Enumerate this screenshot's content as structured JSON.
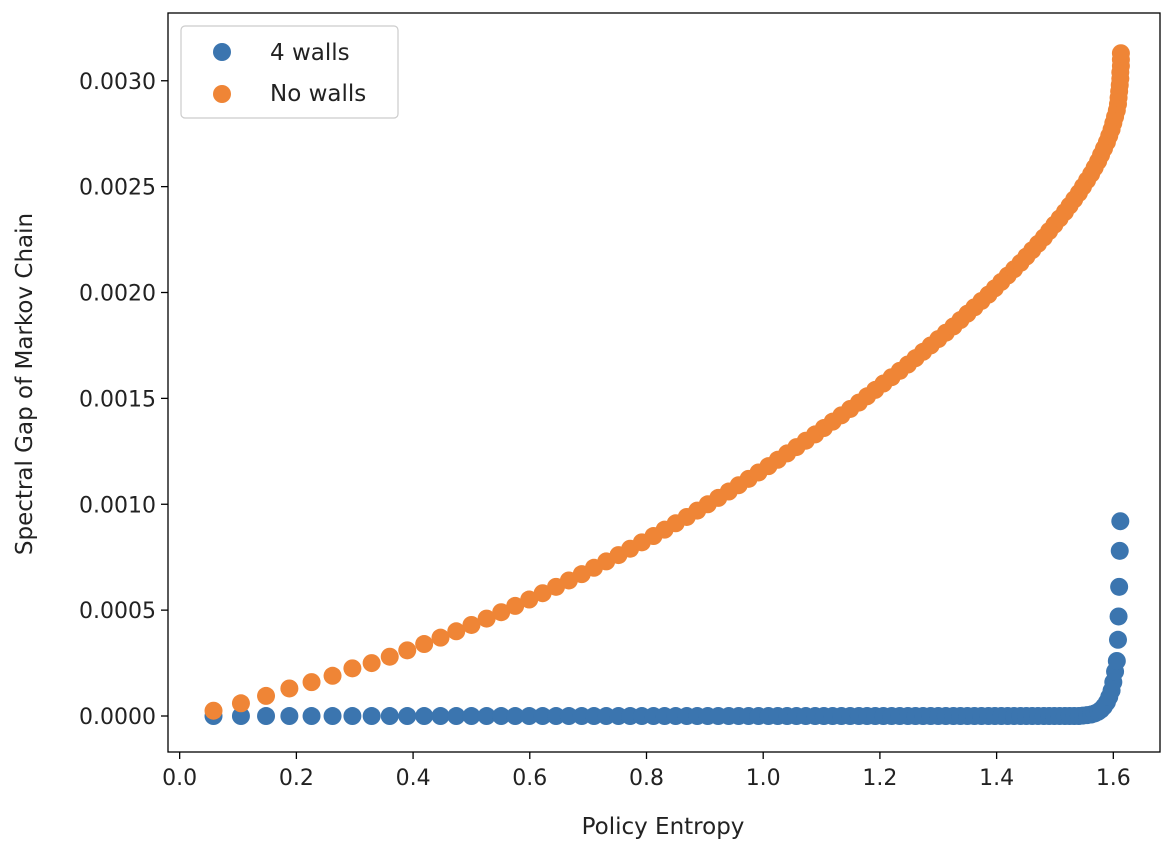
{
  "chart_data": {
    "type": "scatter",
    "title": "",
    "xlabel": "Policy Entropy",
    "ylabel": "Spectral Gap of Markov Chain",
    "xlim": [
      -0.02,
      1.68
    ],
    "ylim": [
      -0.00017,
      0.00332
    ],
    "xticks": [
      0.0,
      0.2,
      0.4,
      0.6,
      0.8,
      1.0,
      1.2,
      1.4,
      1.6
    ],
    "xtick_labels": [
      "0.0",
      "0.2",
      "0.4",
      "0.6",
      "0.8",
      "1.0",
      "1.2",
      "1.4",
      "1.6"
    ],
    "yticks": [
      0.0,
      0.0005,
      0.001,
      0.0015,
      0.002,
      0.0025,
      0.003
    ],
    "ytick_labels": [
      "0.0000",
      "0.0005",
      "0.0010",
      "0.0015",
      "0.0020",
      "0.0025",
      "0.0030"
    ],
    "legend_position": "top-left",
    "series": [
      {
        "name": "4 walls",
        "color": "#3b75af",
        "points": [
          [
            0.058,
            0.0
          ],
          [
            0.105,
            0.0
          ],
          [
            0.148,
            0.0
          ],
          [
            0.188,
            0.0
          ],
          [
            0.226,
            0.0
          ],
          [
            0.262,
            0.0
          ],
          [
            0.296,
            0.0
          ],
          [
            0.329,
            0.0
          ],
          [
            0.36,
            0.0
          ],
          [
            0.39,
            0.0
          ],
          [
            0.419,
            0.0
          ],
          [
            0.447,
            0.0
          ],
          [
            0.474,
            0.0
          ],
          [
            0.5,
            0.0
          ],
          [
            0.526,
            0.0
          ],
          [
            0.551,
            0.0
          ],
          [
            0.575,
            0.0
          ],
          [
            0.599,
            0.0
          ],
          [
            0.622,
            0.0
          ],
          [
            0.645,
            0.0
          ],
          [
            0.667,
            0.0
          ],
          [
            0.689,
            0.0
          ],
          [
            0.71,
            0.0
          ],
          [
            0.731,
            0.0
          ],
          [
            0.752,
            0.0
          ],
          [
            0.772,
            0.0
          ],
          [
            0.792,
            0.0
          ],
          [
            0.812,
            0.0
          ],
          [
            0.831,
            0.0
          ],
          [
            0.85,
            0.0
          ],
          [
            0.869,
            0.0
          ],
          [
            0.887,
            0.0
          ],
          [
            0.905,
            0.0
          ],
          [
            0.923,
            0.0
          ],
          [
            0.941,
            0.0
          ],
          [
            0.958,
            0.0
          ],
          [
            0.975,
            0.0
          ],
          [
            0.992,
            0.0
          ],
          [
            1.009,
            0.0
          ],
          [
            1.025,
            0.0
          ],
          [
            1.041,
            0.0
          ],
          [
            1.057,
            0.0
          ],
          [
            1.073,
            0.0
          ],
          [
            1.089,
            0.0
          ],
          [
            1.104,
            0.0
          ],
          [
            1.119,
            0.0
          ],
          [
            1.134,
            0.0
          ],
          [
            1.149,
            0.0
          ],
          [
            1.164,
            0.0
          ],
          [
            1.178,
            0.0
          ],
          [
            1.192,
            0.0
          ],
          [
            1.206,
            0.0
          ],
          [
            1.22,
            0.0
          ],
          [
            1.234,
            0.0
          ],
          [
            1.248,
            0.0
          ],
          [
            1.261,
            0.0
          ],
          [
            1.274,
            0.0
          ],
          [
            1.287,
            0.0
          ],
          [
            1.3,
            0.0
          ],
          [
            1.313,
            0.0
          ],
          [
            1.326,
            0.0
          ],
          [
            1.338,
            0.0
          ],
          [
            1.35,
            0.0
          ],
          [
            1.362,
            0.0
          ],
          [
            1.374,
            0.0
          ],
          [
            1.386,
            0.0
          ],
          [
            1.397,
            0.0
          ],
          [
            1.408,
            0.0
          ],
          [
            1.419,
            0.0
          ],
          [
            1.43,
            0.0
          ],
          [
            1.441,
            0.0
          ],
          [
            1.451,
            0.0
          ],
          [
            1.461,
            0.0
          ],
          [
            1.471,
            0.0
          ],
          [
            1.481,
            0.0
          ],
          [
            1.49,
            0.0
          ],
          [
            1.499,
            0.0
          ],
          [
            1.508,
            0.0
          ],
          [
            1.517,
            0.0
          ],
          [
            1.525,
            0.0
          ],
          [
            1.533,
            0.0
          ],
          [
            1.541,
            0.0
          ],
          [
            1.548,
            2e-06
          ],
          [
            1.555,
            4e-06
          ],
          [
            1.562,
            7e-06
          ],
          [
            1.568,
            1.2e-05
          ],
          [
            1.574,
            2e-05
          ],
          [
            1.579,
            3e-05
          ],
          [
            1.584,
            4.5e-05
          ],
          [
            1.589,
            6.5e-05
          ],
          [
            1.593,
            9e-05
          ],
          [
            1.597,
            0.00012
          ],
          [
            1.6,
            0.00016
          ],
          [
            1.603,
            0.00021
          ],
          [
            1.606,
            0.00026
          ],
          [
            1.608,
            0.00036
          ],
          [
            1.609,
            0.00047
          ],
          [
            1.61,
            0.00061
          ],
          [
            1.611,
            0.00078
          ],
          [
            1.612,
            0.00092
          ]
        ]
      },
      {
        "name": "No walls",
        "color": "#ef8536",
        "points": [
          [
            0.058,
            2.5e-05
          ],
          [
            0.105,
            6e-05
          ],
          [
            0.148,
            9.5e-05
          ],
          [
            0.188,
            0.00013
          ],
          [
            0.226,
            0.00016
          ],
          [
            0.262,
            0.00019
          ],
          [
            0.296,
            0.000225
          ],
          [
            0.329,
            0.00025
          ],
          [
            0.36,
            0.00028
          ],
          [
            0.39,
            0.00031
          ],
          [
            0.419,
            0.00034
          ],
          [
            0.447,
            0.00037
          ],
          [
            0.474,
            0.0004
          ],
          [
            0.5,
            0.00043
          ],
          [
            0.526,
            0.00046
          ],
          [
            0.551,
            0.00049
          ],
          [
            0.575,
            0.00052
          ],
          [
            0.599,
            0.00055
          ],
          [
            0.622,
            0.00058
          ],
          [
            0.645,
            0.00061
          ],
          [
            0.667,
            0.00064
          ],
          [
            0.689,
            0.00067
          ],
          [
            0.71,
            0.0007
          ],
          [
            0.731,
            0.00073
          ],
          [
            0.752,
            0.00076
          ],
          [
            0.772,
            0.00079
          ],
          [
            0.792,
            0.00082
          ],
          [
            0.812,
            0.00085
          ],
          [
            0.831,
            0.00088
          ],
          [
            0.85,
            0.00091
          ],
          [
            0.869,
            0.00094
          ],
          [
            0.887,
            0.00097
          ],
          [
            0.905,
            0.001
          ],
          [
            0.923,
            0.00103
          ],
          [
            0.941,
            0.00106
          ],
          [
            0.958,
            0.00109
          ],
          [
            0.975,
            0.00112
          ],
          [
            0.992,
            0.00115
          ],
          [
            1.009,
            0.00118
          ],
          [
            1.025,
            0.00121
          ],
          [
            1.041,
            0.00124
          ],
          [
            1.057,
            0.00127
          ],
          [
            1.073,
            0.0013
          ],
          [
            1.089,
            0.00133
          ],
          [
            1.104,
            0.00136
          ],
          [
            1.119,
            0.00139
          ],
          [
            1.134,
            0.00142
          ],
          [
            1.149,
            0.00145
          ],
          [
            1.164,
            0.00148
          ],
          [
            1.178,
            0.00151
          ],
          [
            1.192,
            0.00154
          ],
          [
            1.206,
            0.00157
          ],
          [
            1.22,
            0.0016
          ],
          [
            1.234,
            0.00163
          ],
          [
            1.248,
            0.00166
          ],
          [
            1.261,
            0.00169
          ],
          [
            1.274,
            0.00172
          ],
          [
            1.287,
            0.00175
          ],
          [
            1.3,
            0.00178
          ],
          [
            1.313,
            0.00181
          ],
          [
            1.326,
            0.00184
          ],
          [
            1.338,
            0.00187
          ],
          [
            1.35,
            0.0019
          ],
          [
            1.362,
            0.00193
          ],
          [
            1.374,
            0.00196
          ],
          [
            1.386,
            0.00199
          ],
          [
            1.397,
            0.00202
          ],
          [
            1.408,
            0.00205
          ],
          [
            1.419,
            0.00208
          ],
          [
            1.43,
            0.00211
          ],
          [
            1.441,
            0.00214
          ],
          [
            1.451,
            0.00217
          ],
          [
            1.461,
            0.0022
          ],
          [
            1.471,
            0.00223
          ],
          [
            1.481,
            0.00226
          ],
          [
            1.49,
            0.00229
          ],
          [
            1.499,
            0.00232
          ],
          [
            1.508,
            0.00235
          ],
          [
            1.517,
            0.00238
          ],
          [
            1.525,
            0.00241
          ],
          [
            1.533,
            0.00244
          ],
          [
            1.541,
            0.00247
          ],
          [
            1.548,
            0.0025
          ],
          [
            1.555,
            0.00253
          ],
          [
            1.562,
            0.00256
          ],
          [
            1.568,
            0.00259
          ],
          [
            1.574,
            0.00262
          ],
          [
            1.579,
            0.00265
          ],
          [
            1.584,
            0.00268
          ],
          [
            1.589,
            0.00271
          ],
          [
            1.593,
            0.00274
          ],
          [
            1.597,
            0.00277
          ],
          [
            1.6,
            0.0028
          ],
          [
            1.603,
            0.00283
          ],
          [
            1.606,
            0.00286
          ],
          [
            1.608,
            0.00289
          ],
          [
            1.609,
            0.00292
          ],
          [
            1.61,
            0.00295
          ],
          [
            1.611,
            0.00298
          ],
          [
            1.612,
            0.00301
          ],
          [
            1.612,
            0.00304
          ],
          [
            1.613,
            0.00307
          ],
          [
            1.613,
            0.0031
          ],
          [
            1.613,
            0.00313
          ]
        ]
      }
    ]
  }
}
